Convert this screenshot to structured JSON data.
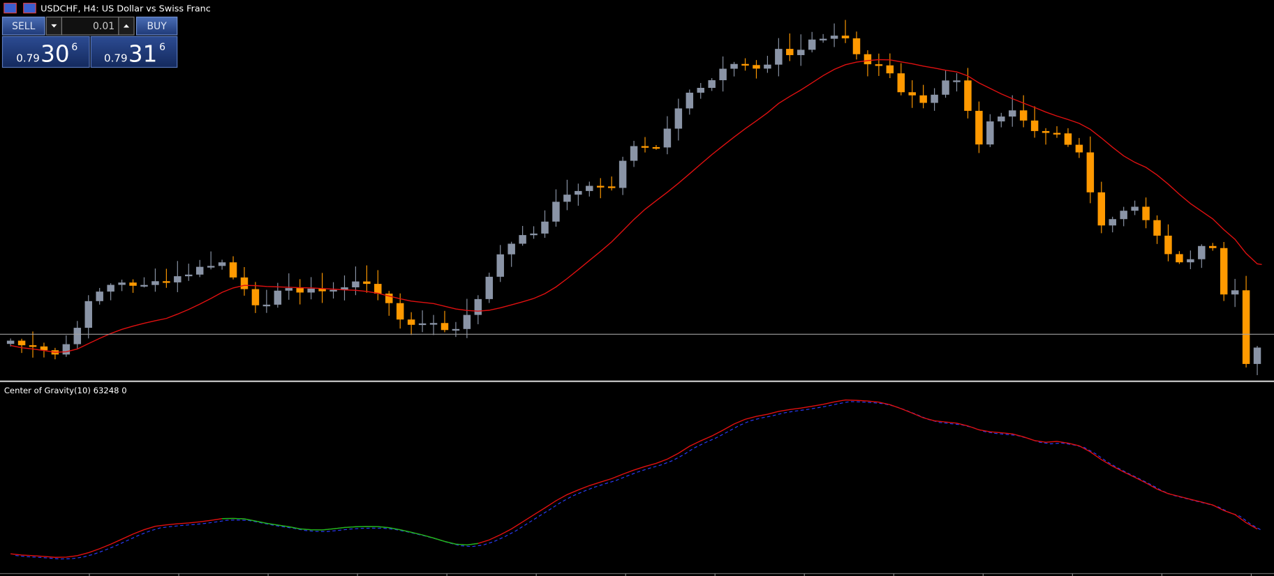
{
  "header": {
    "title": "USDCHF, H4:  US Dollar vs Swiss Franc"
  },
  "trade_panel": {
    "sell": "SELL",
    "lot": "0.01",
    "buy": "BUY",
    "bid": {
      "big": "0.79",
      "main": "30",
      "small": "6"
    },
    "ask": {
      "big": "0.79",
      "main": "31",
      "small": "6"
    }
  },
  "indicator": {
    "label": "Center of Gravity(10) 63248 0"
  }
}
